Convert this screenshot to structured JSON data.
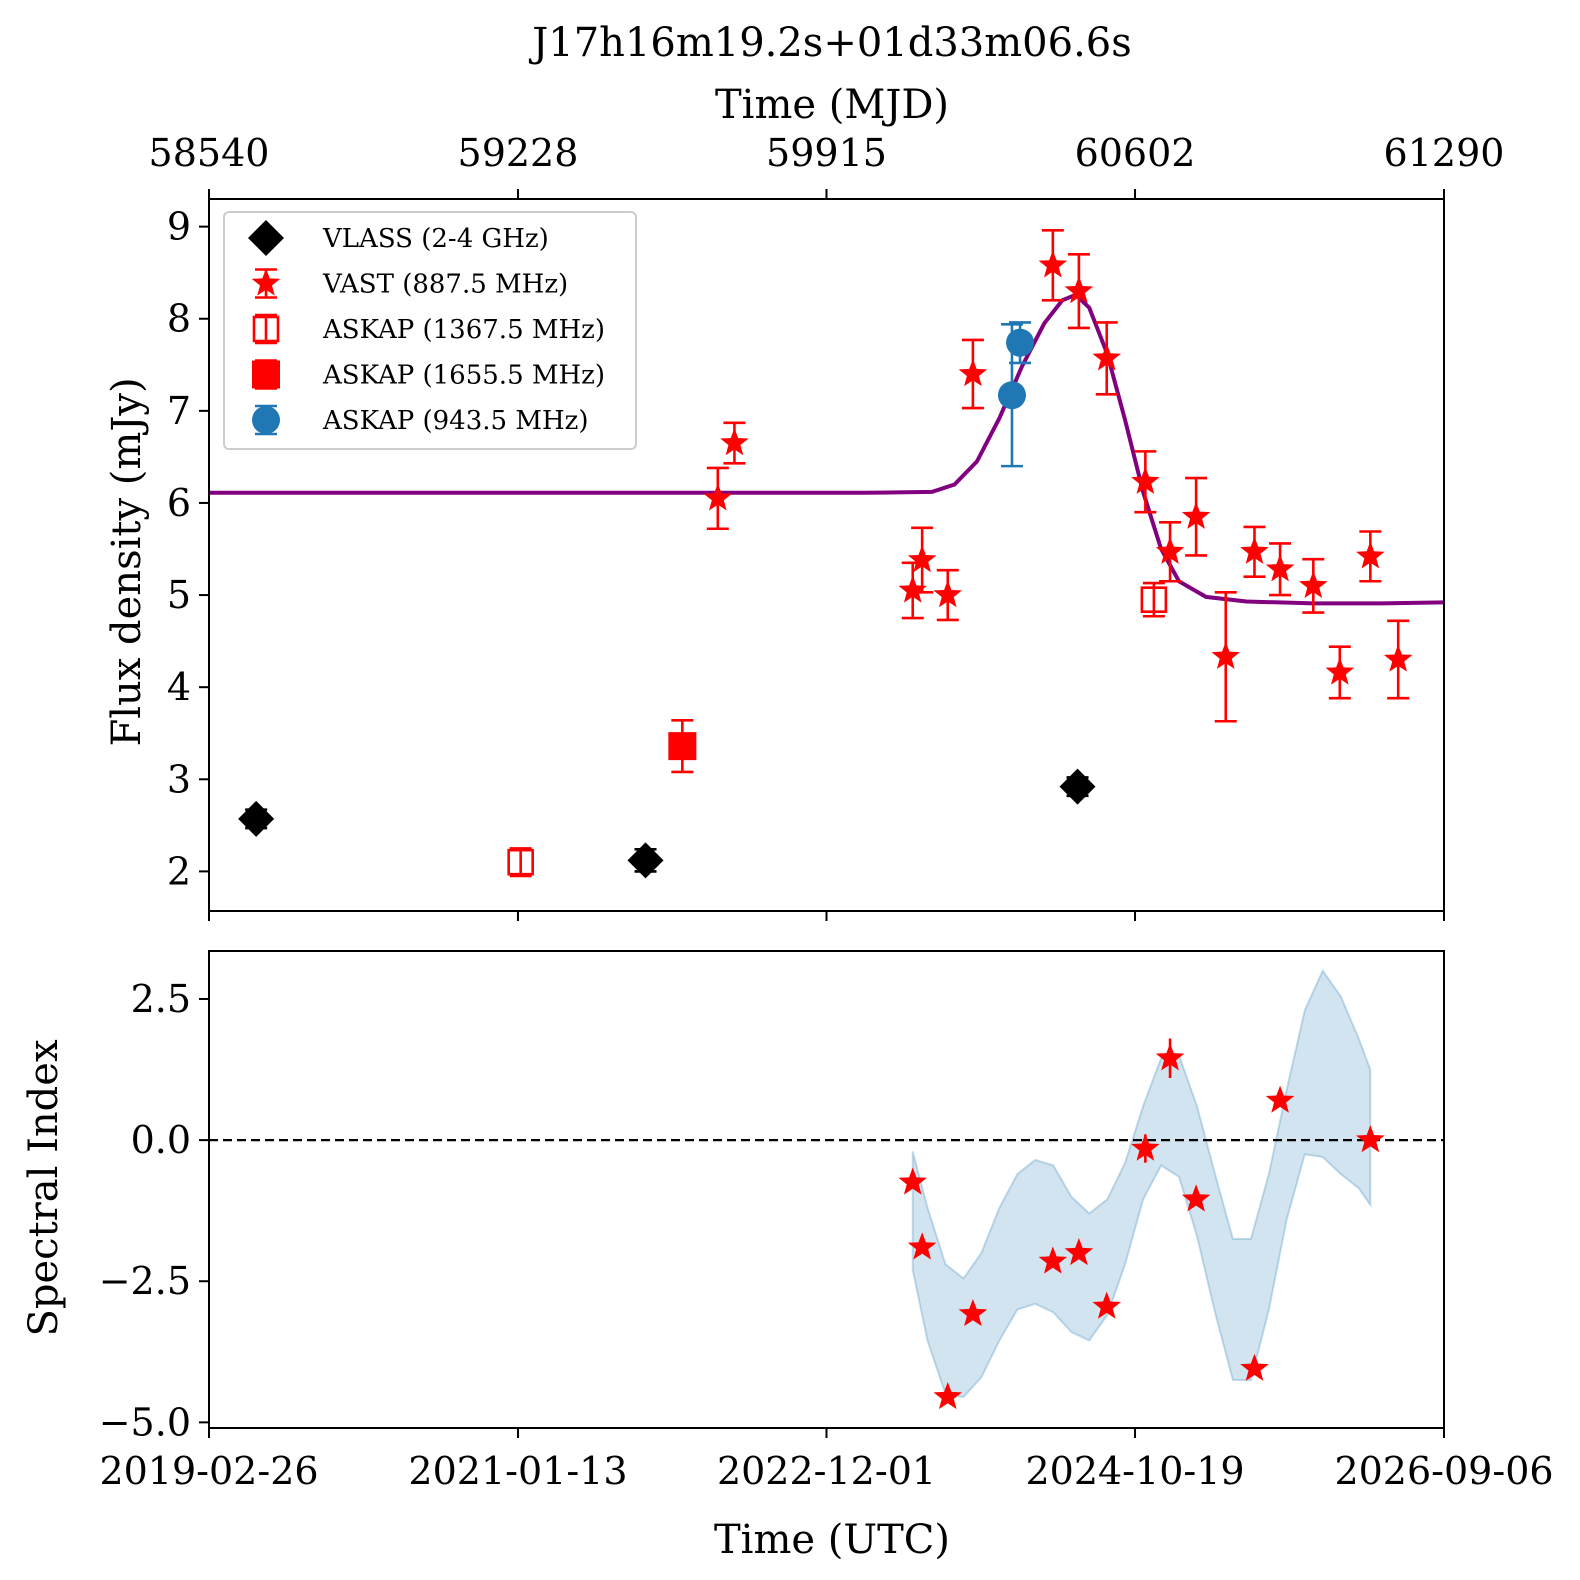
{
  "figure": {
    "title": "J17h16m19.2s+01d33m06.6s",
    "top_axis_label": "Time (MJD)",
    "top_axis_ticks": [
      "58540",
      "59228",
      "59915",
      "60602",
      "61290"
    ],
    "bottom_axis_label": "Time (UTC)",
    "bottom_axis_ticks": [
      "2019-02-26",
      "2021-01-13",
      "2022-12-01",
      "2024-10-19",
      "2026-09-06"
    ]
  },
  "chart_data": [
    {
      "type": "scatter",
      "panel": "top",
      "title": "J17h16m19.2s+01d33m06.6s",
      "xlabel": "Time (MJD)",
      "ylabel": "Flux density (mJy)",
      "xlim": [
        58540,
        61290
      ],
      "ylim": [
        1.57,
        9.3
      ],
      "yticks": [
        2,
        3,
        4,
        5,
        6,
        7,
        8,
        9
      ],
      "grid": false,
      "legend_position": "top-left",
      "series": [
        {
          "name": "VLASS (2-4 GHz)",
          "marker": "diamond-filled",
          "color": "#000000",
          "points": [
            {
              "x": 58645,
              "y": 2.57,
              "err": 0.1
            },
            {
              "x": 59512,
              "y": 2.12,
              "err": 0.12
            },
            {
              "x": 60474,
              "y": 2.92,
              "err": 0.1
            }
          ]
        },
        {
          "name": "VAST (887.5 MHz)",
          "marker": "star",
          "color": "#ff0000",
          "points": [
            {
              "x": 59673,
              "y": 6.05,
              "err": 0.33
            },
            {
              "x": 59710,
              "y": 6.65,
              "err": 0.22
            },
            {
              "x": 60107,
              "y": 5.05,
              "err": 0.3
            },
            {
              "x": 60128,
              "y": 5.38,
              "err": 0.35
            },
            {
              "x": 60185,
              "y": 5.0,
              "err": 0.27
            },
            {
              "x": 60241,
              "y": 7.4,
              "err": 0.37
            },
            {
              "x": 60419,
              "y": 8.58,
              "err": 0.38
            },
            {
              "x": 60477,
              "y": 8.3,
              "err": 0.4
            },
            {
              "x": 60539,
              "y": 7.57,
              "err": 0.39
            },
            {
              "x": 60625,
              "y": 6.23,
              "err": 0.33
            },
            {
              "x": 60680,
              "y": 5.47,
              "err": 0.32
            },
            {
              "x": 60738,
              "y": 5.85,
              "err": 0.42
            },
            {
              "x": 60804,
              "y": 4.33,
              "err": 0.7
            },
            {
              "x": 60868,
              "y": 5.47,
              "err": 0.27
            },
            {
              "x": 60925,
              "y": 5.28,
              "err": 0.28
            },
            {
              "x": 60999,
              "y": 5.1,
              "err": 0.29
            },
            {
              "x": 61058,
              "y": 4.16,
              "err": 0.28
            },
            {
              "x": 61126,
              "y": 5.42,
              "err": 0.27
            },
            {
              "x": 61188,
              "y": 4.3,
              "err": 0.42
            }
          ]
        },
        {
          "name": "ASKAP (1367.5 MHz)",
          "marker": "square-open",
          "color": "#ff0000",
          "points": [
            {
              "x": 59234,
              "y": 2.1,
              "err": 0.15
            },
            {
              "x": 60644,
              "y": 4.95,
              "err": 0.18
            }
          ]
        },
        {
          "name": "ASKAP (1655.5 MHz)",
          "marker": "square-filled",
          "color": "#ff0000",
          "points": [
            {
              "x": 59594,
              "y": 3.36,
              "err": 0.28
            }
          ]
        },
        {
          "name": "ASKAP (943.5 MHz)",
          "marker": "circle-filled",
          "color": "#1f77b4",
          "points": [
            {
              "x": 60328,
              "y": 7.17,
              "err": 0.77
            },
            {
              "x": 60346,
              "y": 7.74,
              "err": 0.22
            }
          ]
        }
      ],
      "model_curve": {
        "color": "#800080",
        "x": [
          58540,
          59000,
          59500,
          60000,
          60150,
          60200,
          60250,
          60300,
          60350,
          60400,
          60440,
          60470,
          60500,
          60540,
          60580,
          60620,
          60660,
          60700,
          60760,
          60850,
          61000,
          61150,
          61290
        ],
        "y": [
          6.11,
          6.11,
          6.11,
          6.11,
          6.12,
          6.2,
          6.45,
          6.92,
          7.48,
          7.95,
          8.2,
          8.26,
          8.12,
          7.62,
          6.9,
          6.12,
          5.5,
          5.15,
          4.98,
          4.93,
          4.91,
          4.91,
          4.92
        ]
      }
    },
    {
      "type": "scatter",
      "panel": "bottom",
      "xlabel": "Time (UTC)",
      "ylabel": "Spectral Index",
      "xlim": [
        58540,
        61290
      ],
      "ylim": [
        -5.1,
        3.35
      ],
      "yticks": [
        2.5,
        0.0,
        -2.5,
        -5.0
      ],
      "ytick_labels": [
        "2.5",
        "0.0",
        "−2.5",
        "−5.0"
      ],
      "reference_line": {
        "y": 0,
        "style": "dashed",
        "color": "#000000"
      },
      "grid": false,
      "points": [
        {
          "x": 60107,
          "y": -0.75
        },
        {
          "x": 60128,
          "y": -1.9
        },
        {
          "x": 60185,
          "y": -4.55
        },
        {
          "x": 60241,
          "y": -3.08
        },
        {
          "x": 60419,
          "y": -2.15
        },
        {
          "x": 60477,
          "y": -2.0
        },
        {
          "x": 60539,
          "y": -2.95
        },
        {
          "x": 60625,
          "y": -0.15,
          "err": 0.25
        },
        {
          "x": 60680,
          "y": 1.45,
          "err": 0.35
        },
        {
          "x": 60738,
          "y": -1.05
        },
        {
          "x": 60868,
          "y": -4.05
        },
        {
          "x": 60925,
          "y": 0.7
        },
        {
          "x": 61126,
          "y": 0.0
        }
      ],
      "band": {
        "color": "#1f77b4",
        "x": [
          60107,
          60140,
          60180,
          60220,
          60260,
          60300,
          60340,
          60380,
          60420,
          60460,
          60500,
          60540,
          60580,
          60620,
          60660,
          60700,
          60740,
          60780,
          60820,
          60860,
          60900,
          60940,
          60980,
          61020,
          61060,
          61100,
          61126
        ],
        "upper": [
          -0.2,
          -1.2,
          -2.2,
          -2.45,
          -2.0,
          -1.2,
          -0.6,
          -0.35,
          -0.45,
          -1.0,
          -1.3,
          -1.05,
          -0.4,
          0.6,
          1.45,
          1.5,
          0.6,
          -0.6,
          -1.75,
          -1.75,
          -0.6,
          0.9,
          2.3,
          3.0,
          2.55,
          1.8,
          1.25
        ],
        "lower": [
          -2.3,
          -3.55,
          -4.5,
          -4.55,
          -4.2,
          -3.55,
          -3.0,
          -2.9,
          -3.05,
          -3.4,
          -3.55,
          -3.1,
          -2.2,
          -1.05,
          -0.45,
          -0.65,
          -1.7,
          -3.05,
          -4.25,
          -4.25,
          -3.0,
          -1.4,
          -0.25,
          -0.3,
          -0.6,
          -0.85,
          -1.15
        ]
      }
    }
  ]
}
